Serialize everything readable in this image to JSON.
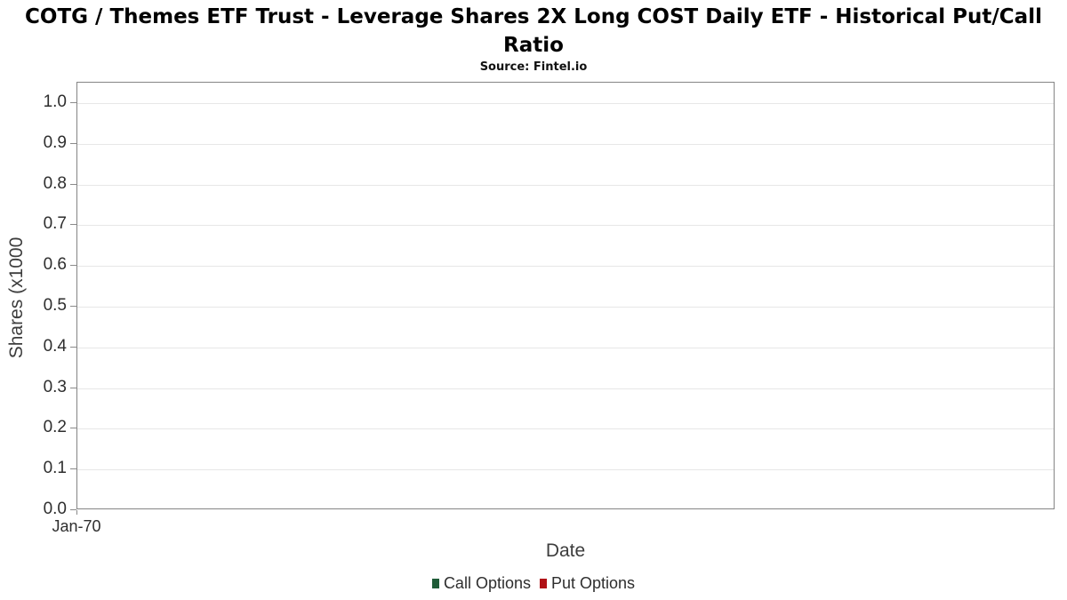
{
  "header": {
    "title": "COTG / Themes ETF Trust - Leverage Shares 2X Long COST Daily ETF - Historical Put/Call Ratio",
    "subtitle": "Source: Fintel.io"
  },
  "chart_data": {
    "type": "bar",
    "title": "COTG / Themes ETF Trust - Leverage Shares 2X Long COST Daily ETF - Historical Put/Call Ratio",
    "subtitle": "Source: Fintel.io",
    "xlabel": "Date",
    "ylabel": "Shares (x1000",
    "ylim": [
      0,
      1.05
    ],
    "grid": true,
    "legend_position": "bottom",
    "y_ticks": [
      "0.0",
      "0.1",
      "0.2",
      "0.3",
      "0.4",
      "0.5",
      "0.6",
      "0.7",
      "0.8",
      "0.9",
      "1.0"
    ],
    "x_ticks": [
      "Jan-70"
    ],
    "categories": [],
    "series": [
      {
        "name": "Call Options",
        "color": "#1f5c38",
        "values": []
      },
      {
        "name": "Put Options",
        "color": "#b01116",
        "values": []
      }
    ],
    "colors": {
      "plot_border": "#858585",
      "gridline": "#e7e7e7",
      "axis_text": "#2e2e2e",
      "title_text": "#000000"
    }
  }
}
